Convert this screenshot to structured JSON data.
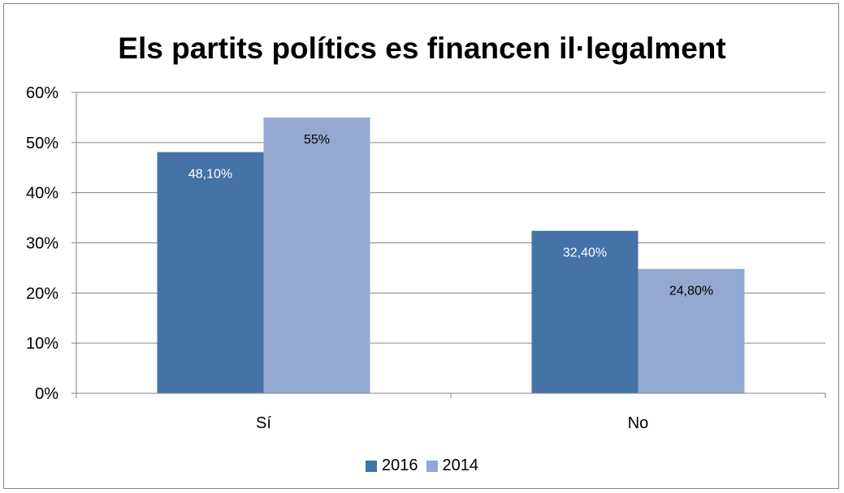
{
  "chart_data": {
    "type": "bar",
    "title": "Els partits polítics es financen il·legalment",
    "categories": [
      "Sí",
      "No"
    ],
    "series": [
      {
        "name": "2016",
        "values": [
          48.1,
          32.4
        ],
        "labels": [
          "48,10%",
          "32,40%"
        ],
        "color": "#4572a7",
        "label_color": "#ffffff"
      },
      {
        "name": "2014",
        "values": [
          55,
          24.8
        ],
        "labels": [
          "55%",
          "24,80%"
        ],
        "color": "#93a9cf",
        "label_color": "#000000"
      }
    ],
    "ylim": [
      0,
      60
    ],
    "yticks": [
      0,
      10,
      20,
      30,
      40,
      50,
      60
    ],
    "ytick_labels": [
      "0%",
      "10%",
      "20%",
      "30%",
      "40%",
      "50%",
      "60%"
    ],
    "grid": true,
    "legend": "bottom"
  }
}
